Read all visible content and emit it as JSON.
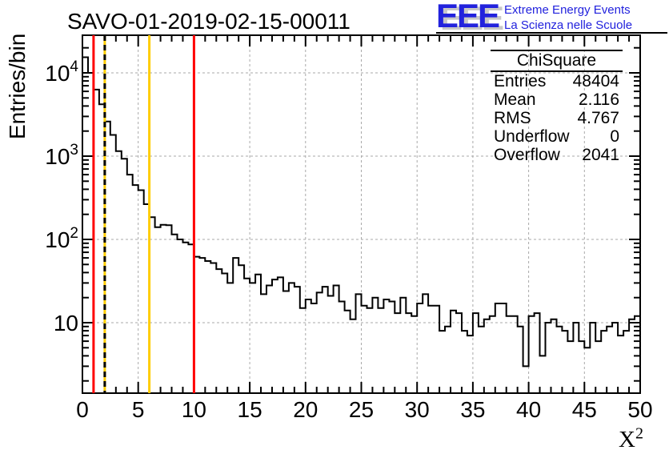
{
  "header": {
    "title": "SAVO-01-2019-02-15-00011"
  },
  "logo": {
    "acronym": "EEE",
    "line1": "Extreme Energy Events",
    "line2": "La Scienza nelle Scuole",
    "color": "#2222dd"
  },
  "axes": {
    "y_title": "Entries/bin",
    "x_title_base": "X",
    "x_title_sup": "2"
  },
  "stats_box": {
    "title": "ChiSquare",
    "rows": [
      {
        "label": "Entries",
        "value": "48404"
      },
      {
        "label": "Mean",
        "value": "2.116"
      },
      {
        "label": "RMS",
        "value": "4.767"
      },
      {
        "label": "Underflow",
        "value": "0"
      },
      {
        "label": "Overflow",
        "value": "2041"
      }
    ]
  },
  "chart_data": {
    "type": "bar",
    "subtype": "step-histogram",
    "title": "SAVO-01-2019-02-15-00011",
    "xlabel": "X^2",
    "ylabel": "Entries/bin",
    "y_scale": "log",
    "xlim": [
      0,
      50
    ],
    "ylim": [
      1.5,
      28000
    ],
    "bin_start": 0,
    "bin_width": 0.5,
    "values": [
      15400,
      10000,
      6300,
      4200,
      2600,
      1800,
      1150,
      930,
      600,
      450,
      390,
      265,
      185,
      140,
      150,
      148,
      115,
      100,
      92,
      87,
      62,
      60,
      55,
      52,
      44,
      39,
      30,
      60,
      49,
      34,
      30,
      38,
      22,
      28,
      33,
      35,
      24,
      30,
      27,
      15,
      19,
      17,
      23,
      27,
      21,
      28,
      18,
      14,
      11,
      22,
      16,
      15,
      20,
      15,
      19,
      18,
      13,
      20,
      13,
      12,
      17,
      22,
      16,
      16,
      8,
      9,
      14,
      13,
      8,
      7,
      13,
      9,
      11,
      12,
      17,
      17,
      12,
      12,
      9,
      3,
      12,
      13,
      4,
      10,
      11,
      9,
      8,
      6,
      10,
      6,
      5,
      10,
      6,
      8,
      9,
      10,
      7,
      8,
      11,
      12
    ],
    "x_ticks": [
      0,
      5,
      10,
      15,
      20,
      25,
      30,
      35,
      40,
      45,
      50
    ],
    "y_tick_exponents": [
      1,
      2,
      3,
      4
    ],
    "grid": true,
    "grid_color": "#a9a9a9",
    "line_color": "#000000",
    "cut_lines": [
      {
        "x": 1,
        "color": "#ff0000",
        "style": "solid"
      },
      {
        "x": 2,
        "color": "#ffcc00",
        "style": "solid"
      },
      {
        "x": 2,
        "color": "#000000",
        "style": "dashed"
      },
      {
        "x": 6,
        "color": "#ffcc00",
        "style": "solid"
      },
      {
        "x": 10,
        "color": "#ff0000",
        "style": "solid"
      }
    ],
    "legend": null
  }
}
